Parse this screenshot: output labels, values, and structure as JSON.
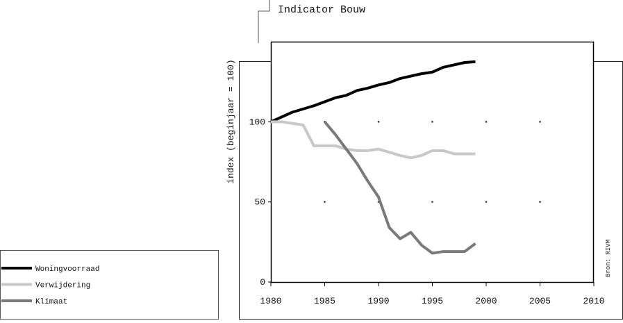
{
  "chart_data": {
    "type": "line",
    "title": "Indicator Bouw",
    "y_label": "index (beginjaar = 100)",
    "source": "Bron: RIVM",
    "x": [
      1980,
      1981,
      1982,
      1983,
      1984,
      1985,
      1986,
      1987,
      1988,
      1989,
      1990,
      1991,
      1992,
      1993,
      1994,
      1995,
      1996,
      1997,
      1998,
      1999
    ],
    "series": [
      {
        "name": "Woningvoorraad",
        "color": "#000000",
        "values": [
          100,
          103,
          106,
          108,
          110,
          112.5,
          115,
          116.5,
          119.5,
          121,
          123,
          124.5,
          127,
          128.5,
          130,
          131,
          134,
          135.5,
          137,
          137.5
        ]
      },
      {
        "name": "Verwijdering",
        "color": "#c8c8c8",
        "values": [
          100,
          100,
          99,
          98,
          85,
          85,
          85,
          83,
          82,
          82,
          83,
          81,
          79,
          77.5,
          79,
          82,
          82,
          80,
          80,
          80
        ]
      },
      {
        "name": "Klimaat",
        "color": "#7a7a7a",
        "values": [
          null,
          null,
          null,
          null,
          null,
          100,
          92,
          83,
          74,
          63,
          53,
          34,
          27,
          31,
          23,
          18,
          19,
          19,
          19,
          24
        ]
      }
    ],
    "xlim": [
      1980,
      2010
    ],
    "xticks": [
      1980,
      1985,
      1990,
      1995,
      2000,
      2005,
      2010
    ],
    "ylim": [
      0,
      150
    ],
    "yticks": [
      0,
      50,
      100
    ],
    "grid": true
  }
}
